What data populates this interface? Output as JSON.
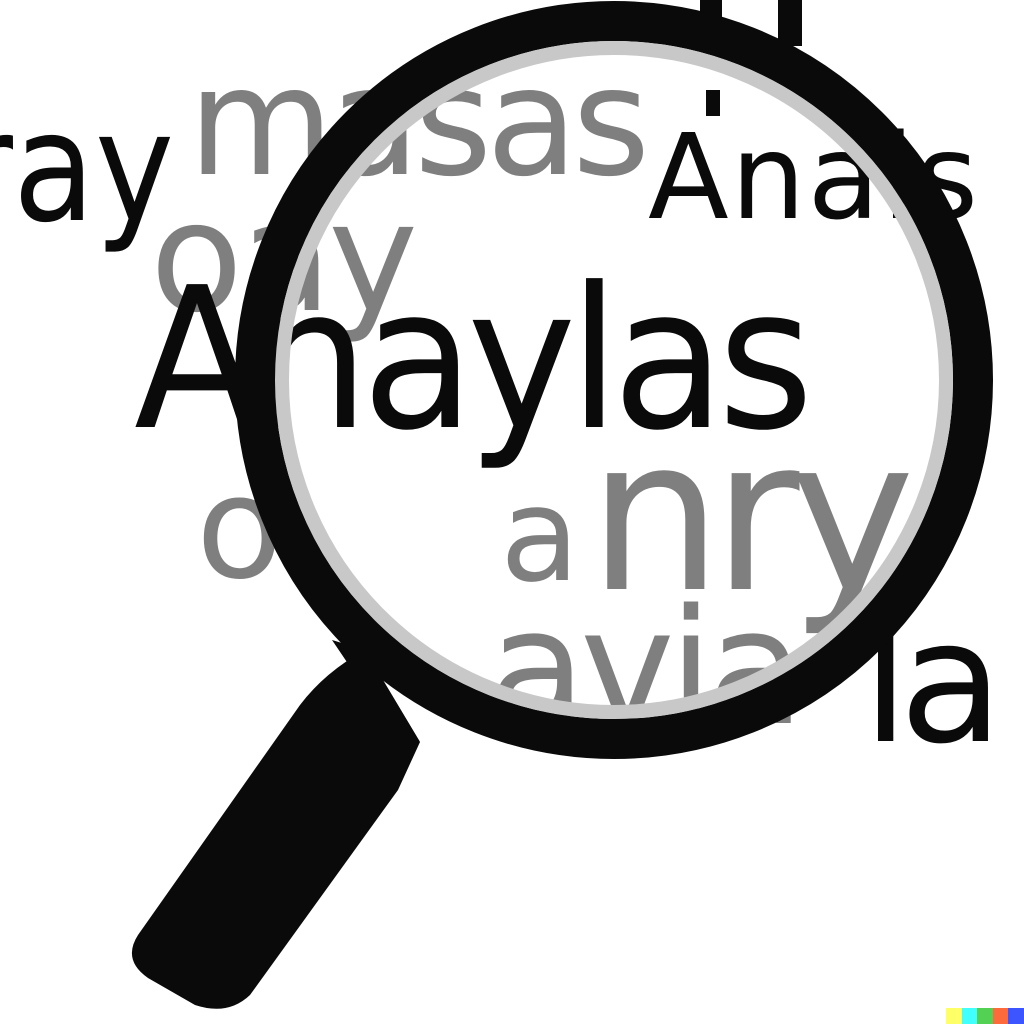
{
  "words": {
    "ray": "ray",
    "masas": "masas",
    "oay": "oay",
    "anais": "Anais",
    "anaylas": "Anaylas",
    "o": "o",
    "a": "a",
    "nry": "nry",
    "avia": "avia",
    "la": "la"
  },
  "colors": {
    "ink": "#0a0a0a",
    "faded_ink": "#7f7f7f",
    "lens_rim": "#0a0a0a",
    "lens_inner_ring": "#c8c8c8",
    "background": "#ffffff",
    "strip": [
      "#ffff66",
      "#42ffff",
      "#52d152",
      "#ff6a3d",
      "#3d55ff"
    ]
  },
  "icon": "magnifying-glass-icon"
}
